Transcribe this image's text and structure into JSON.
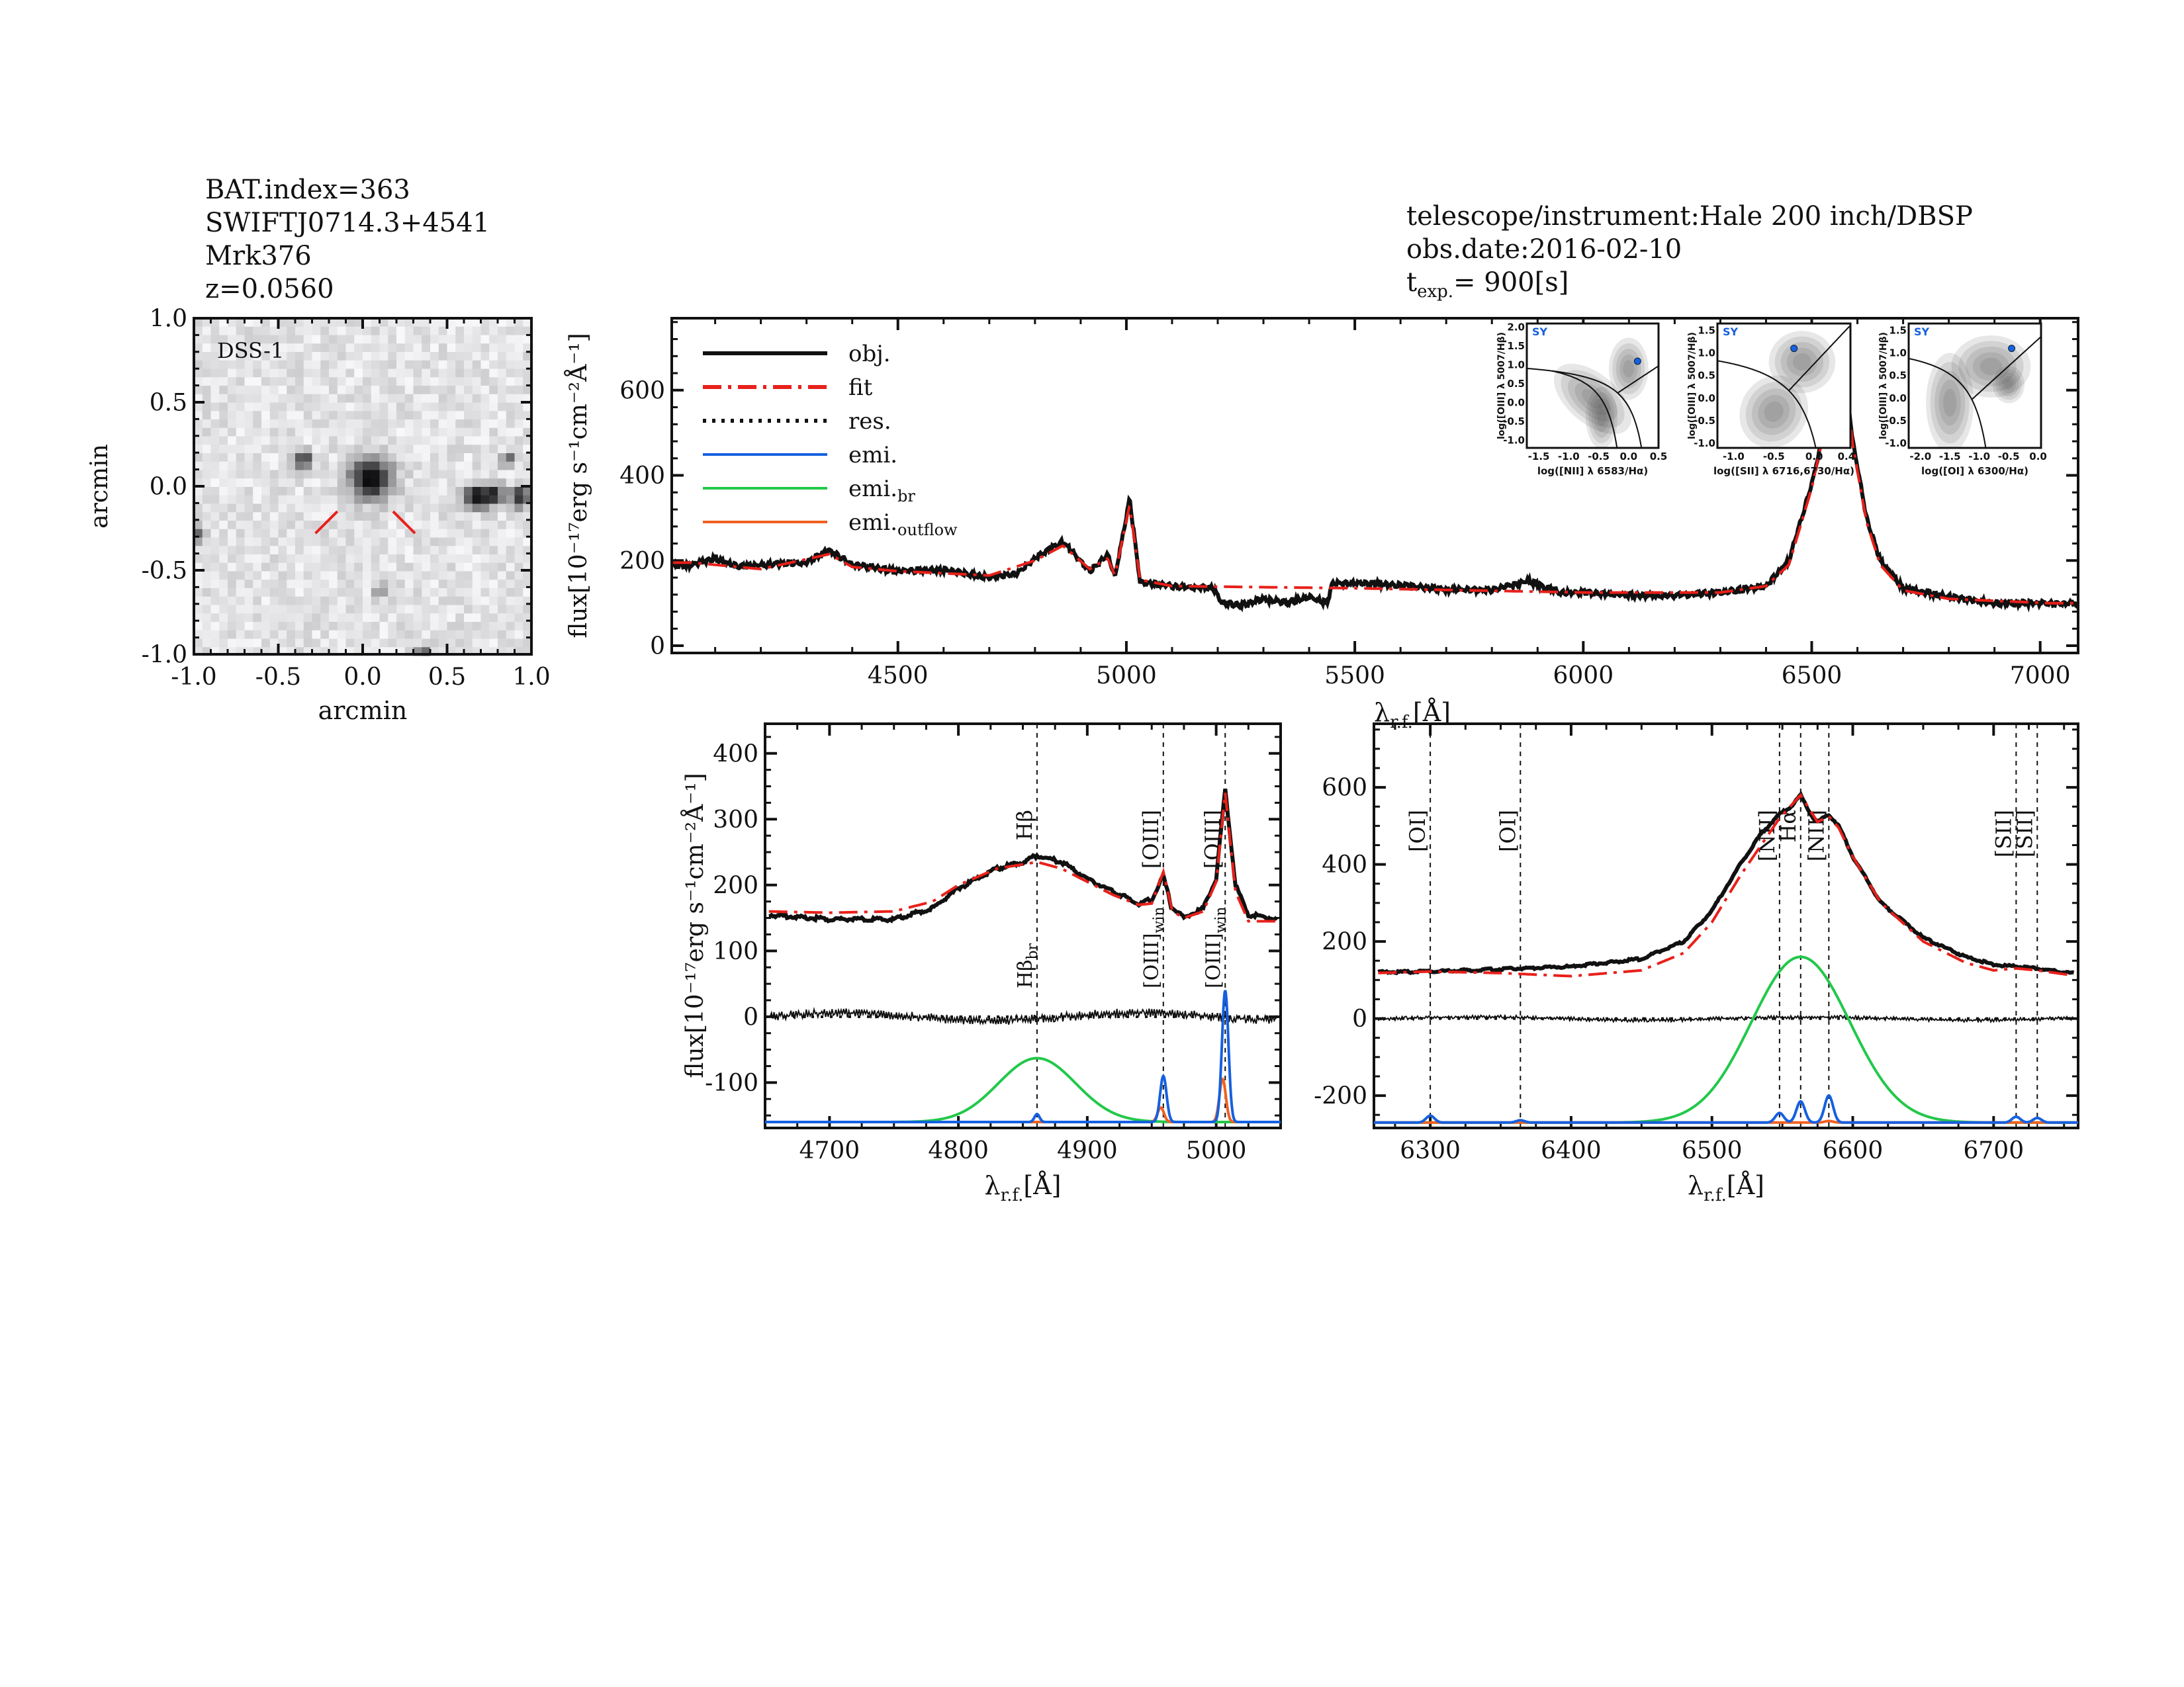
{
  "header_left": {
    "bat_index": "BAT.index=363",
    "swift_name": "SWIFTJ0714.3+4541",
    "object": "Mrk376",
    "redshift": "z=0.0560"
  },
  "header_right": {
    "telescope": "telescope/instrument:Hale 200 inch/DBSP",
    "obs_date": "obs.date:2016-02-10",
    "texp_prefix": "t",
    "texp_sub": "exp.",
    "texp_value": "=  900[s]"
  },
  "colors": {
    "obj": "#111111",
    "fit": "#e8201a",
    "res": "#111111",
    "emi": "#1560e0",
    "emi_br": "#22c84a",
    "emi_outflow": "#f06020",
    "sy": "#1560e0"
  },
  "chart_data": [
    {
      "id": "dss",
      "type": "heatmap",
      "label": "DSS-1",
      "xlabel": "arcmin",
      "ylabel": "arcmin",
      "xlim": [
        -1.0,
        1.0
      ],
      "ylim": [
        -1.0,
        1.0
      ],
      "xticks": [
        "-1.0",
        "-0.5",
        "0.0",
        "0.5",
        "1.0"
      ],
      "xtick_values": [
        -1.0,
        -0.5,
        0.0,
        0.5,
        1.0
      ],
      "yticks": [
        "-1.0",
        "-0.5",
        "0.0",
        "0.5",
        "1.0"
      ],
      "ytick_values": [
        -1.0,
        -0.5,
        0.0,
        0.5,
        1.0
      ],
      "sources": [
        {
          "x": 0.05,
          "y": 0.05,
          "r": 0.12,
          "peak": 1.0
        },
        {
          "x": -0.35,
          "y": 0.16,
          "r": 0.05,
          "peak": 0.8
        },
        {
          "x": 0.67,
          "y": -0.06,
          "r": 0.07,
          "peak": 0.9
        },
        {
          "x": 0.78,
          "y": -0.05,
          "r": 0.06,
          "peak": 0.85
        },
        {
          "x": 0.93,
          "y": -0.06,
          "r": 0.06,
          "peak": 0.8
        },
        {
          "x": 0.86,
          "y": 0.16,
          "r": 0.04,
          "peak": 0.6
        },
        {
          "x": -1.0,
          "y": -0.28,
          "r": 0.05,
          "peak": 0.6
        },
        {
          "x": 0.1,
          "y": -0.62,
          "r": 0.04,
          "peak": 0.5
        },
        {
          "x": 0.35,
          "y": -1.0,
          "r": 0.05,
          "peak": 0.7
        }
      ]
    },
    {
      "id": "main",
      "type": "line",
      "xlabel": "λ",
      "xlabel_sub": "r.f.",
      "xlabel_unit": "[Å]",
      "ylabel": "flux[10⁻¹⁷erg s⁻¹cm⁻²Å⁻¹]",
      "xlim": [
        4005,
        7083
      ],
      "ylim": [
        -17,
        769
      ],
      "xticks": [
        "4500",
        "5000",
        "5500",
        "6000",
        "6500",
        "7000"
      ],
      "xtick_values": [
        4500,
        5000,
        5500,
        6000,
        6500,
        7000
      ],
      "yticks": [
        "0",
        "200",
        "400",
        "600"
      ],
      "ytick_values": [
        0,
        200,
        400,
        600
      ],
      "legend": [
        "obj.",
        "fit",
        "res.",
        "emi.",
        "emi.",
        "emi."
      ],
      "legend_subs": [
        "",
        "",
        "",
        "",
        "br",
        "outflow"
      ],
      "legend_position": "top-left",
      "obj": {
        "x": [
          4050,
          4100,
          4150,
          4200,
          4300,
          4350,
          4400,
          4500,
          4600,
          4700,
          4760,
          4800,
          4861,
          4920,
          4959,
          4975,
          5007,
          5030,
          5100,
          5190,
          5210,
          5250,
          5300,
          5350,
          5400,
          5440,
          5450,
          5500,
          5600,
          5700,
          5800,
          5880,
          5950,
          6000,
          6100,
          6200,
          6300,
          6400,
          6450,
          6500,
          6530,
          6550,
          6563,
          6575,
          6590,
          6620,
          6650,
          6700,
          6800,
          6900,
          7020
        ],
        "y": [
          190,
          205,
          185,
          190,
          195,
          225,
          190,
          175,
          178,
          160,
          170,
          205,
          245,
          175,
          215,
          160,
          345,
          150,
          140,
          135,
          100,
          95,
          110,
          100,
          115,
          100,
          145,
          148,
          142,
          132,
          130,
          152,
          125,
          125,
          118,
          118,
          125,
          140,
          200,
          380,
          520,
          580,
          590,
          620,
          480,
          300,
          200,
          135,
          115,
          100,
          100
        ]
      },
      "fit": {
        "x": [
          4050,
          4200,
          4350,
          4400,
          4500,
          4700,
          4800,
          4861,
          4920,
          4959,
          4975,
          5007,
          5030,
          5100,
          5500,
          6000,
          6300,
          6400,
          6450,
          6500,
          6530,
          6563,
          6575,
          6590,
          6620,
          6650,
          6700,
          6800,
          7020
        ],
        "y": [
          195,
          180,
          215,
          185,
          175,
          165,
          200,
          235,
          180,
          205,
          165,
          330,
          155,
          140,
          135,
          125,
          125,
          140,
          190,
          370,
          520,
          600,
          610,
          470,
          290,
          190,
          130,
          110,
          100
        ]
      }
    },
    {
      "id": "hbeta",
      "type": "line",
      "xlabel": "λ",
      "xlabel_sub": "r.f.",
      "xlabel_unit": "[Å]",
      "ylabel": "flux[10⁻¹⁷erg s⁻¹cm⁻²Å⁻¹]",
      "xlim": [
        4650,
        5050
      ],
      "ylim": [
        -169,
        445
      ],
      "xticks": [
        "4700",
        "4800",
        "4900",
        "5000"
      ],
      "xtick_values": [
        4700,
        4800,
        4900,
        5000
      ],
      "yticks": [
        "-100",
        "0",
        "100",
        "200",
        "300",
        "400"
      ],
      "ytick_values": [
        -100,
        0,
        100,
        200,
        300,
        400
      ],
      "obj": {
        "x": [
          4650,
          4700,
          4750,
          4780,
          4800,
          4830,
          4850,
          4861,
          4880,
          4900,
          4920,
          4940,
          4950,
          4959,
          4965,
          4975,
          4990,
          5000,
          5007,
          5015,
          5025,
          5050
        ],
        "y": [
          155,
          148,
          148,
          165,
          195,
          225,
          235,
          245,
          235,
          210,
          190,
          172,
          178,
          215,
          168,
          150,
          165,
          210,
          345,
          200,
          155,
          148
        ]
      },
      "fit": {
        "x": [
          4650,
          4700,
          4750,
          4780,
          4800,
          4830,
          4861,
          4880,
          4900,
          4920,
          4940,
          4950,
          4959,
          4966,
          4975,
          4990,
          5000,
          5007,
          5015,
          5025,
          5050
        ],
        "y": [
          160,
          158,
          160,
          175,
          200,
          225,
          235,
          225,
          205,
          185,
          170,
          172,
          220,
          160,
          150,
          160,
          205,
          340,
          190,
          145,
          145
        ]
      },
      "res_level": 0,
      "emi_baseline": -160,
      "components": [
        {
          "kind": "br",
          "center": 4861,
          "amp": 97,
          "sigma": 30
        },
        {
          "kind": "narrow",
          "center": 4861,
          "amp": 12,
          "sigma": 2
        },
        {
          "kind": "narrow",
          "center": 4959,
          "amp": 70,
          "sigma": 2.5
        },
        {
          "kind": "narrow",
          "center": 5007,
          "amp": 200,
          "sigma": 2.5
        },
        {
          "kind": "outflow",
          "center": 4957,
          "amp": 22,
          "sigma": 2.5
        },
        {
          "kind": "outflow",
          "center": 5005,
          "amp": 65,
          "sigma": 2.5
        }
      ],
      "lines": [
        {
          "wave": 4861,
          "top": "Hβ",
          "bottom": "Hβ",
          "bottom_sub": "br"
        },
        {
          "wave": 4959,
          "top": "[OIII]",
          "bottom": "[OIII]",
          "bottom_sub": "win"
        },
        {
          "wave": 5007,
          "top": "[OIII]",
          "bottom": "[OIII]",
          "bottom_sub": "win"
        }
      ]
    },
    {
      "id": "halpha",
      "type": "line",
      "xlabel": "λ",
      "xlabel_sub": "r.f.",
      "xlabel_unit": "[Å]",
      "xlim": [
        6260,
        6760
      ],
      "ylim": [
        -284,
        765
      ],
      "xticks": [
        "6300",
        "6400",
        "6500",
        "6600",
        "6700"
      ],
      "xtick_values": [
        6300,
        6400,
        6500,
        6600,
        6700
      ],
      "yticks": [
        "-200",
        "0",
        "200",
        "400",
        "600"
      ],
      "ytick_values": [
        -200,
        0,
        200,
        400,
        600
      ],
      "obj": {
        "x": [
          6260,
          6300,
          6350,
          6400,
          6450,
          6480,
          6500,
          6520,
          6535,
          6548,
          6556,
          6563,
          6570,
          6575,
          6583,
          6590,
          6600,
          6620,
          6650,
          6680,
          6700,
          6716,
          6731,
          6760
        ],
        "y": [
          120,
          122,
          128,
          135,
          155,
          200,
          280,
          400,
          480,
          530,
          550,
          580,
          530,
          510,
          530,
          500,
          420,
          300,
          210,
          160,
          140,
          135,
          130,
          115
        ]
      },
      "fit": {
        "x": [
          6260,
          6300,
          6350,
          6400,
          6450,
          6480,
          6500,
          6520,
          6548,
          6563,
          6575,
          6583,
          6590,
          6600,
          6620,
          6650,
          6680,
          6700,
          6716,
          6731,
          6760
        ],
        "y": [
          118,
          122,
          118,
          110,
          125,
          170,
          250,
          370,
          520,
          580,
          510,
          525,
          495,
          420,
          300,
          200,
          145,
          125,
          130,
          125,
          110
        ]
      },
      "res_level": 0,
      "emi_baseline": -270,
      "components": [
        {
          "kind": "br",
          "center": 6563,
          "amp": 430,
          "sigma": 35
        },
        {
          "kind": "narrow",
          "center": 6300,
          "amp": 18,
          "sigma": 3
        },
        {
          "kind": "narrow",
          "center": 6364,
          "amp": 6,
          "sigma": 3
        },
        {
          "kind": "narrow",
          "center": 6548,
          "amp": 25,
          "sigma": 3
        },
        {
          "kind": "narrow",
          "center": 6563,
          "amp": 55,
          "sigma": 3
        },
        {
          "kind": "narrow",
          "center": 6583,
          "amp": 70,
          "sigma": 3
        },
        {
          "kind": "narrow",
          "center": 6716,
          "amp": 15,
          "sigma": 3
        },
        {
          "kind": "narrow",
          "center": 6731,
          "amp": 12,
          "sigma": 3
        },
        {
          "kind": "outflow",
          "center": 6583,
          "amp": 4,
          "sigma": 3
        }
      ],
      "lines": [
        {
          "wave": 6300,
          "top": "[OI]"
        },
        {
          "wave": 6364,
          "top": "[OI]"
        },
        {
          "wave": 6548,
          "top": "[NII]"
        },
        {
          "wave": 6563,
          "top": "Hα"
        },
        {
          "wave": 6583,
          "top": "[NII]"
        },
        {
          "wave": 6716,
          "top": "[SII]"
        },
        {
          "wave": 6731,
          "top": "[SII]"
        }
      ]
    },
    {
      "id": "bpt_nii",
      "type": "scatter",
      "class_label": "SY",
      "xlabel": "log([NII] λ 6583/Hα)",
      "ylabel": "log([OIII] λ 5007/Hβ)",
      "xlim": [
        -1.7,
        0.5
      ],
      "ylim": [
        -1.2,
        2.1
      ],
      "xticks": [
        "-1.5",
        "-1.0",
        "-0.5",
        "0.0",
        "0.5"
      ],
      "xtick_values": [
        -1.5,
        -1.0,
        -0.5,
        0.0,
        0.5
      ],
      "yticks": [
        "-1.0",
        "-0.5",
        "0.0",
        "0.5",
        "1.0",
        "1.5",
        "2.0"
      ],
      "ytick_values": [
        -1.0,
        -0.5,
        0.0,
        0.5,
        1.0,
        1.5,
        2.0
      ],
      "point": {
        "x": 0.15,
        "y": 1.1
      }
    },
    {
      "id": "bpt_sii",
      "type": "scatter",
      "class_label": "SY",
      "xlabel": "log([SII] λ 6716,6730/Hα)",
      "ylabel": "log([OIII] λ 5007/Hβ)",
      "xlim": [
        -1.2,
        0.45
      ],
      "ylim": [
        -1.1,
        1.65
      ],
      "xticks": [
        "-1.0",
        "-0.5",
        "0.0",
        "0.4"
      ],
      "xtick_values": [
        -1.0,
        -0.5,
        0.0,
        0.4
      ],
      "yticks": [
        "-1.0",
        "-0.5",
        "0.0",
        "0.5",
        "1.0",
        "1.5"
      ],
      "ytick_values": [
        -1.0,
        -0.5,
        0.0,
        0.5,
        1.0,
        1.5
      ],
      "point": {
        "x": -0.25,
        "y": 1.1
      }
    },
    {
      "id": "bpt_oi",
      "type": "scatter",
      "class_label": "SY",
      "xlabel": "log([OI] λ 6300/Hα)",
      "ylabel": "log([OIII] λ 5007/Hβ)",
      "xlim": [
        -2.2,
        0.05
      ],
      "ylim": [
        -1.1,
        1.65
      ],
      "xticks": [
        "-2.0",
        "-1.5",
        "-1.0",
        "-0.5",
        "0.0"
      ],
      "xtick_values": [
        -2.0,
        -1.5,
        -1.0,
        -0.5,
        0.0
      ],
      "yticks": [
        "-1.0",
        "-0.5",
        "0.0",
        "0.5",
        "1.0",
        "1.5"
      ],
      "ytick_values": [
        -1.0,
        -0.5,
        0.0,
        0.5,
        1.0,
        1.5
      ],
      "point": {
        "x": -0.45,
        "y": 1.1
      }
    }
  ]
}
